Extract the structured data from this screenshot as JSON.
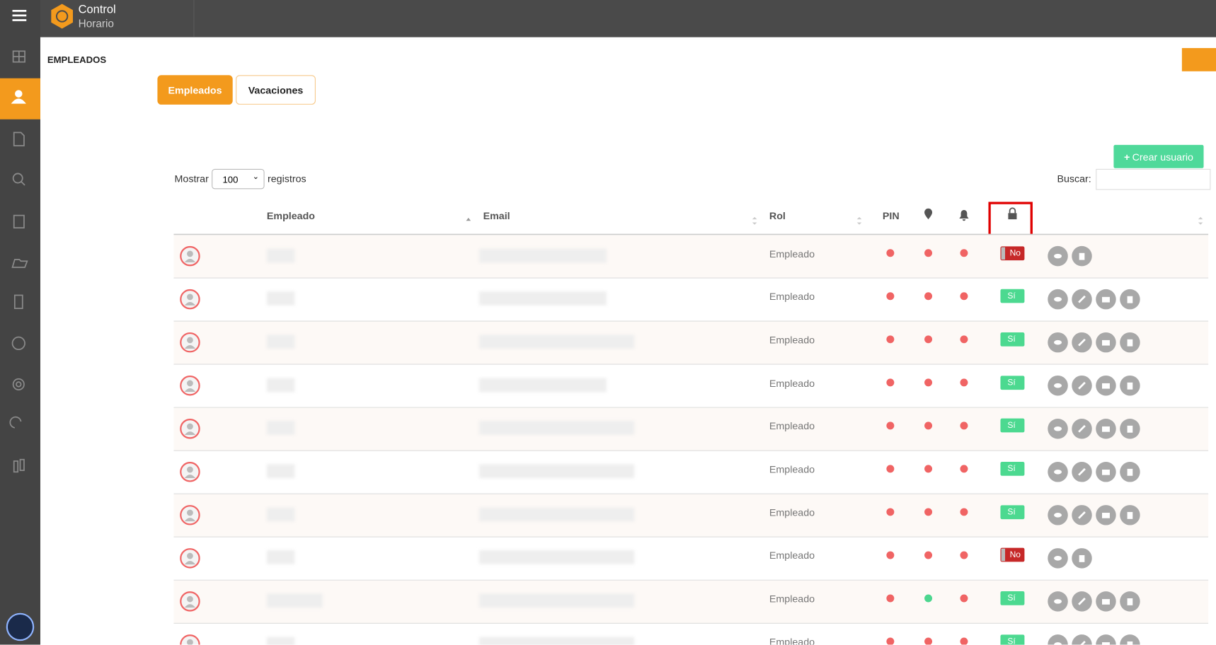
{
  "header": {
    "app_name_1": "Control",
    "app_name_2": "Horario"
  },
  "page": {
    "title": "EMPLEADOS",
    "tabs": [
      "Empleados",
      "Vacaciones"
    ],
    "active_tab": 0,
    "create_button": "Crear usuario"
  },
  "table_controls": {
    "show_label": "Mostrar",
    "page_size": "100",
    "records_label": "registros",
    "search_label": "Buscar:"
  },
  "table": {
    "columns": [
      "Empleado",
      "Email",
      "Rol",
      "PIN"
    ],
    "status_colors": {
      "on": "#4cd68f",
      "off": "#f06464"
    },
    "rows": [
      {
        "role": "Empleado",
        "pin": "off",
        "location": "off",
        "notifications": "off",
        "access": {
          "label": "No",
          "enabled": false
        }
      },
      {
        "role": "Empleado",
        "pin": "off",
        "location": "off",
        "notifications": "off",
        "access": {
          "label": "Sí",
          "enabled": true
        }
      },
      {
        "role": "Empleado",
        "pin": "off",
        "location": "off",
        "notifications": "off",
        "access": {
          "label": "Sí",
          "enabled": true
        }
      },
      {
        "role": "Empleado",
        "pin": "off",
        "location": "off",
        "notifications": "off",
        "access": {
          "label": "Sí",
          "enabled": true
        }
      },
      {
        "role": "Empleado",
        "pin": "off",
        "location": "off",
        "notifications": "off",
        "access": {
          "label": "Sí",
          "enabled": true
        }
      },
      {
        "role": "Empleado",
        "pin": "off",
        "location": "off",
        "notifications": "off",
        "access": {
          "label": "Sí",
          "enabled": true
        }
      },
      {
        "role": "Empleado",
        "pin": "off",
        "location": "off",
        "notifications": "off",
        "access": {
          "label": "Sí",
          "enabled": true
        }
      },
      {
        "role": "Empleado",
        "pin": "off",
        "location": "off",
        "notifications": "off",
        "access": {
          "label": "No",
          "enabled": false
        }
      },
      {
        "role": "Empleado",
        "pin": "off",
        "location": "on",
        "notifications": "off",
        "access": {
          "label": "Sí",
          "enabled": true
        }
      },
      {
        "role": "Empleado",
        "pin": "off",
        "location": "off",
        "notifications": "off",
        "access": {
          "label": "Sí",
          "enabled": true
        }
      }
    ]
  }
}
